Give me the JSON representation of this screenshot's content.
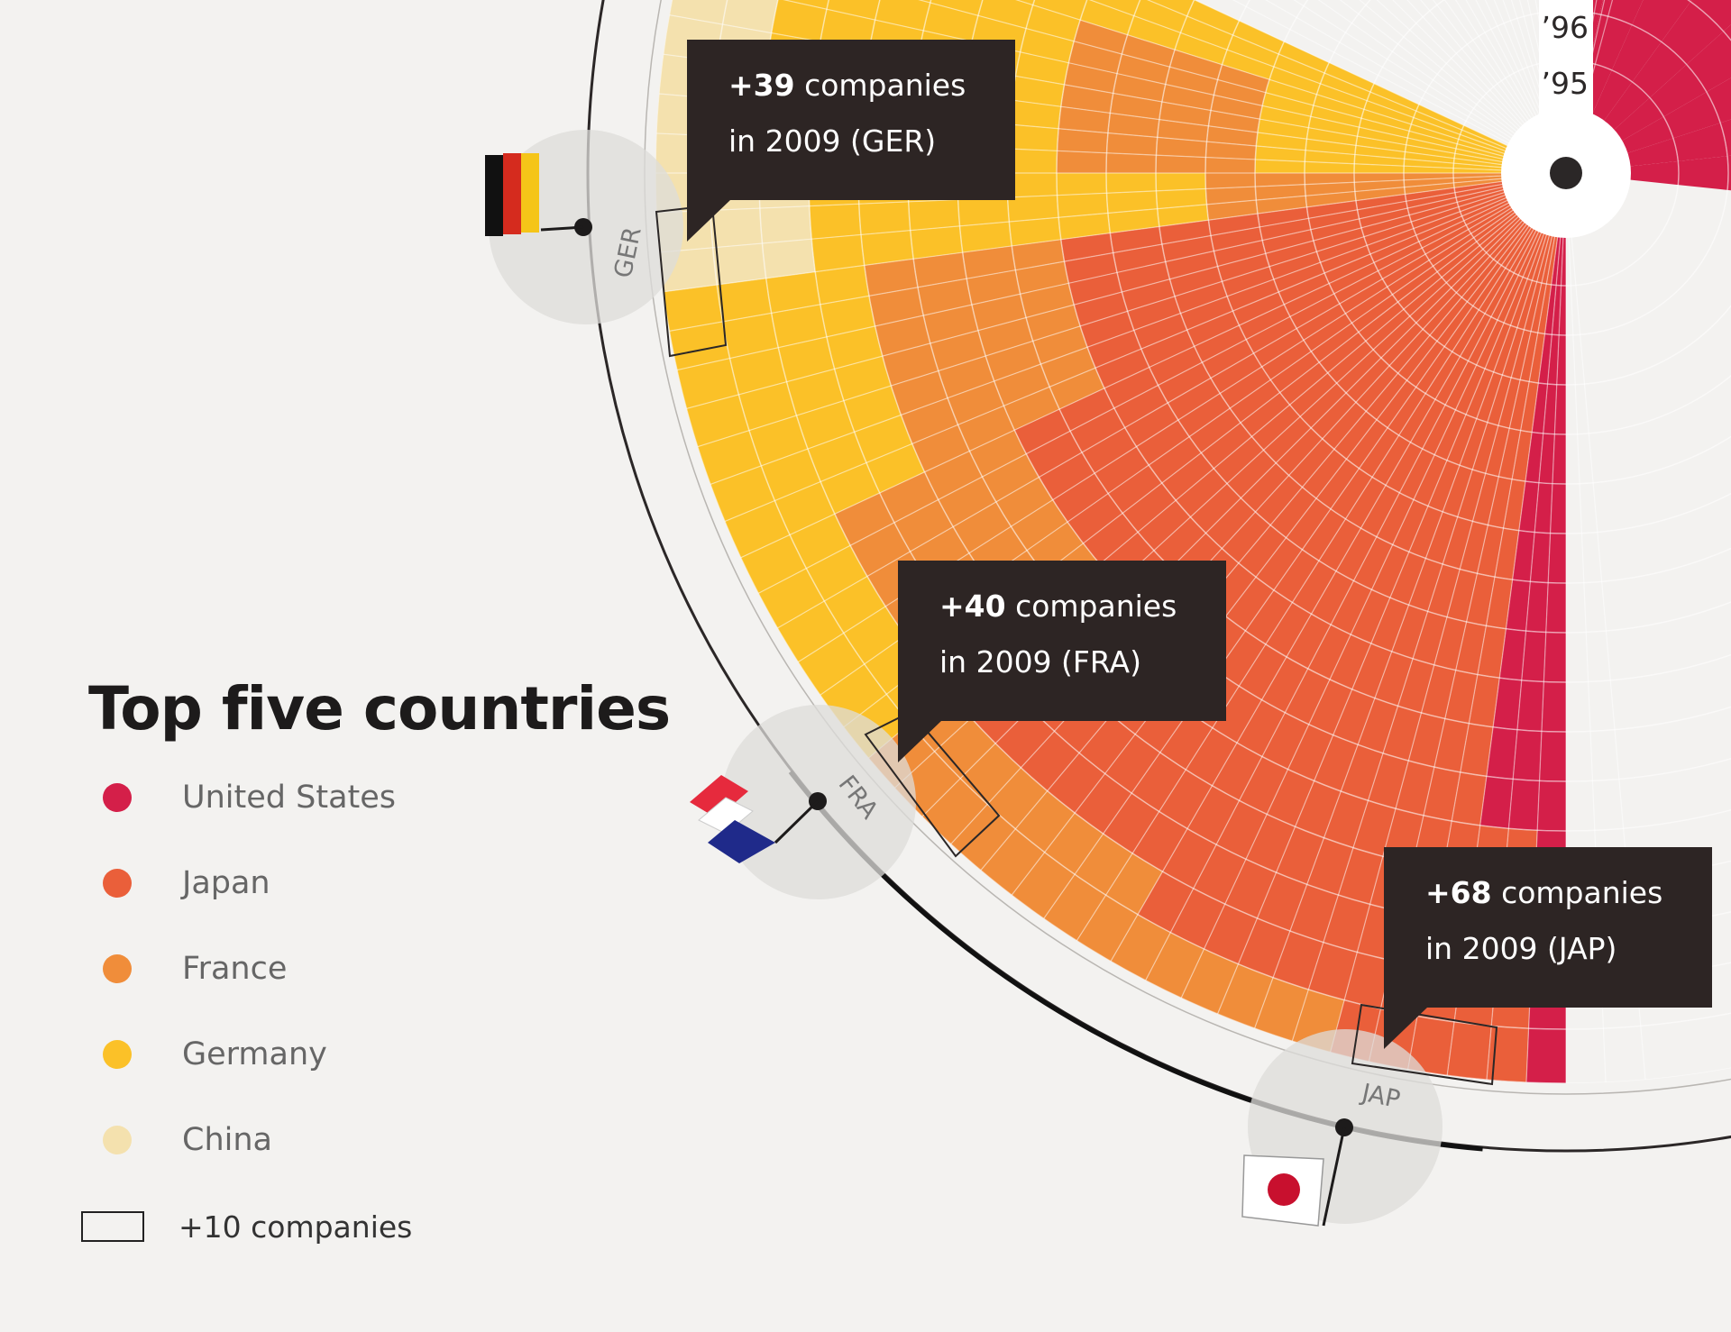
{
  "chart_data": {
    "type": "radial-heatmap",
    "title": "Top five countries",
    "year_labels": [
      "’96",
      "’95"
    ],
    "legend": [
      {
        "name": "United States",
        "color": "#d41f49"
      },
      {
        "name": "Japan",
        "color": "#ea5f3a"
      },
      {
        "name": "France",
        "color": "#f08d3a"
      },
      {
        "name": "Germany",
        "color": "#fbc128"
      },
      {
        "name": "China",
        "color": "#f4e1ae"
      }
    ],
    "unit_legend": "+10 companies",
    "annotations": [
      {
        "country": "GER",
        "value": "+39",
        "text": "companies",
        "line2": "in 2009 (GER)"
      },
      {
        "country": "FRA",
        "value": "+40",
        "text": "companies",
        "line2": "in 2009 (FRA)"
      },
      {
        "country": "JAP",
        "value": "+68",
        "text": "companies",
        "line2": "in 2009 (JAP)"
      }
    ],
    "markers": [
      {
        "label": "GER",
        "flag": "germany-flag"
      },
      {
        "label": "FRA",
        "flag": "france-flag"
      },
      {
        "label": "JAP",
        "flag": "japan-flag"
      }
    ]
  }
}
